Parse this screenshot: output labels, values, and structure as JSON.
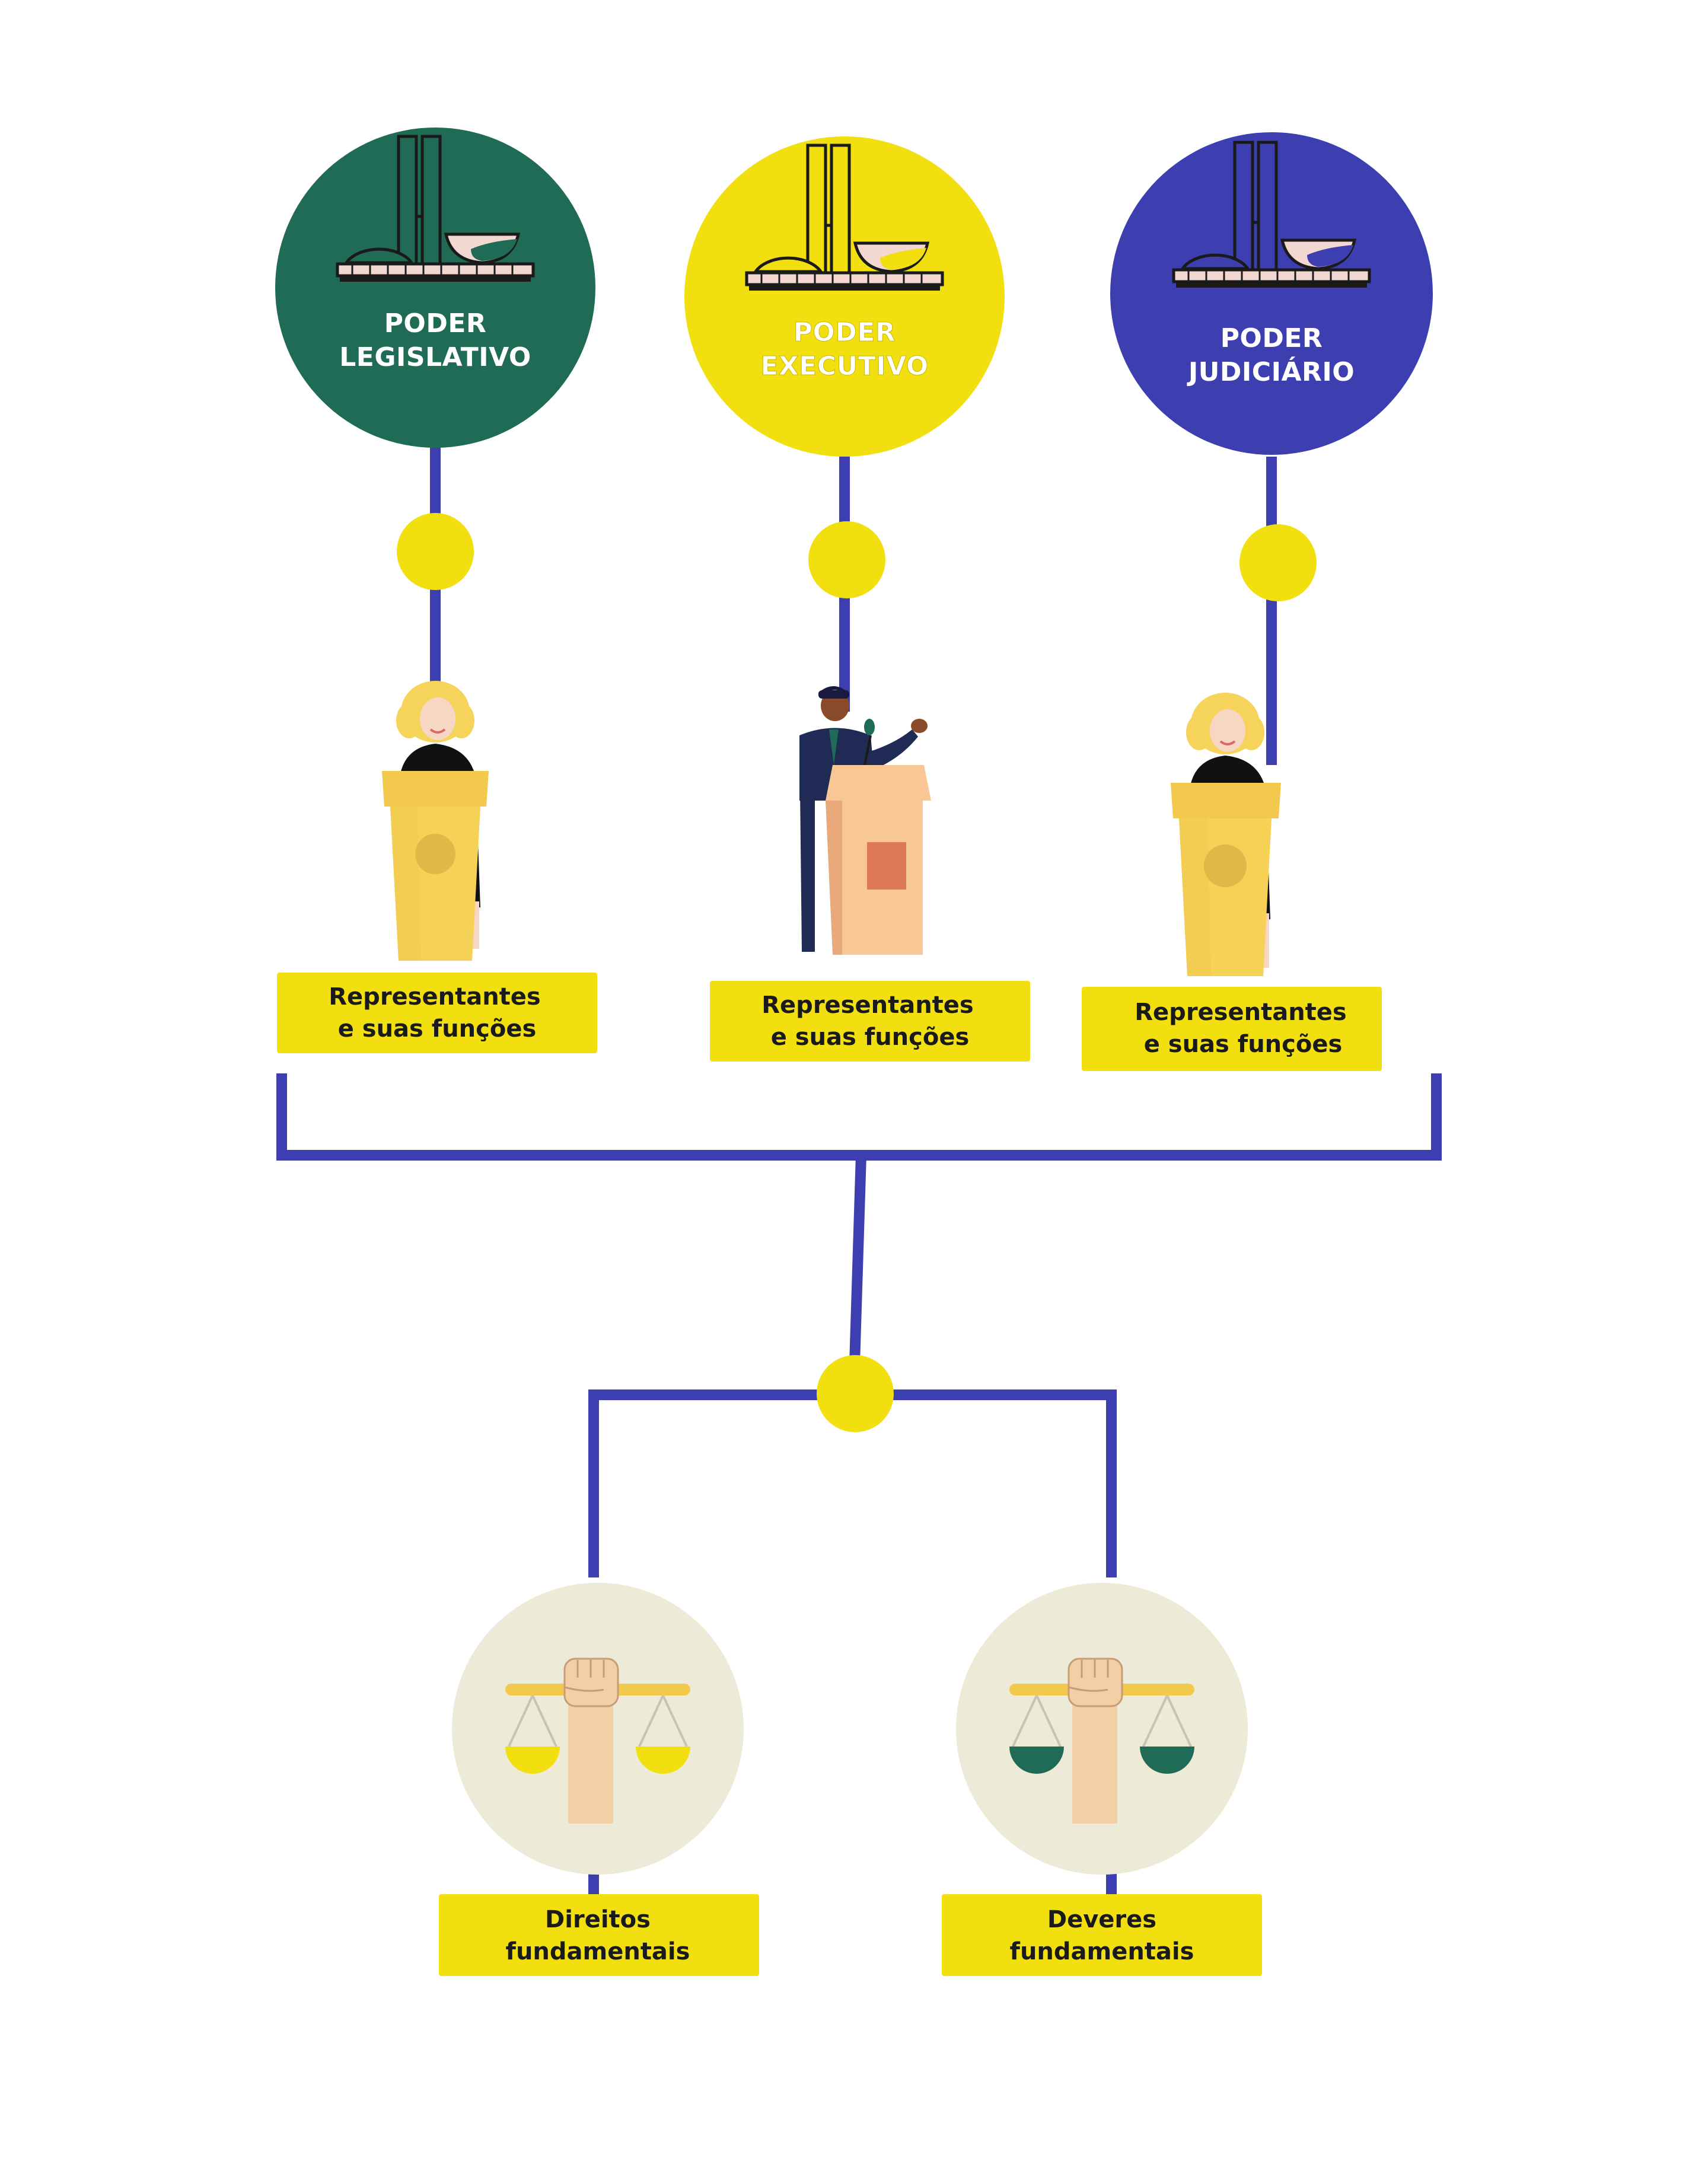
{
  "powers": [
    {
      "id": "legislativo",
      "line1": "PODER",
      "line2": "LEGISLATIVO",
      "color": "#1f6b55",
      "bowl_fill": "#f2d8d0",
      "bowl_band": "#1f6b55"
    },
    {
      "id": "executivo",
      "line1": "PODER",
      "line2": "EXECUTIVO",
      "color": "#f2df10",
      "bowl_fill": "#f2d8d0",
      "bowl_band": "#f2df10"
    },
    {
      "id": "judiciario",
      "line1": "PODER",
      "line2": "JUDICIÁRIO",
      "color": "#3d3fb0",
      "bowl_fill": "#f2d8d0",
      "bowl_band": "#3d3fb0"
    }
  ],
  "representatives": [
    {
      "line1": "Representantes",
      "line2": "e suas funções"
    },
    {
      "line1": "Representantes",
      "line2": "e suas funções"
    },
    {
      "line1": "Representantes",
      "line2": "e suas funções"
    }
  ],
  "outcomes": [
    {
      "line1": "Direitos",
      "line2": "fundamentais",
      "pan_color": "#f2df10"
    },
    {
      "line1": "Deveres",
      "line2": "fundamentais",
      "pan_color": "#1f6b55"
    }
  ],
  "colors": {
    "connector": "#3d3fb0",
    "node": "#f2df10",
    "label_box": "#f2df10",
    "scale_bg": "#eeead8",
    "podium_yellow": "#f2c94c",
    "podium_orange": "#f9c796"
  }
}
